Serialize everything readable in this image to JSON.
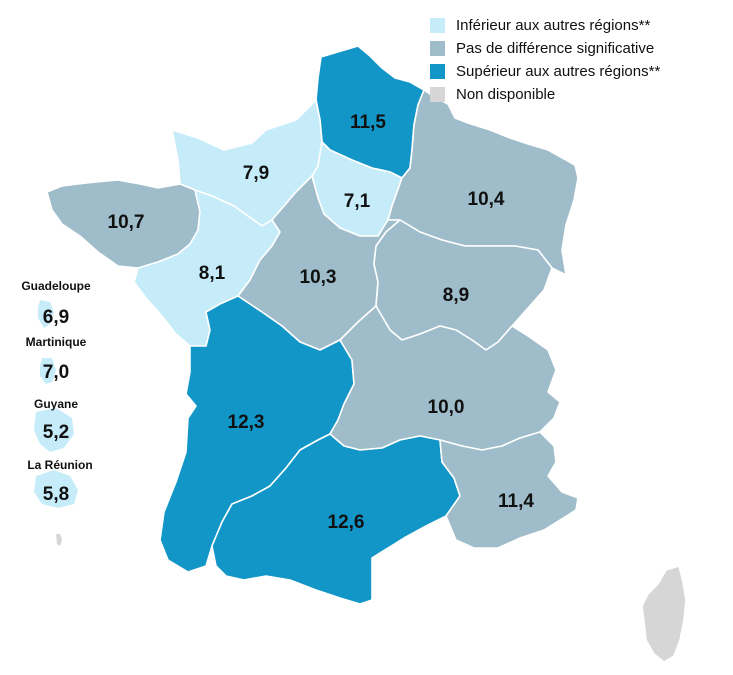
{
  "colors": {
    "inferior": "#c6ecf9",
    "no_diff": "#9ebcc9",
    "superior": "#1196c7",
    "unavailable": "#d6d6d6",
    "border": "#ffffff"
  },
  "legend": {
    "items": [
      {
        "key": "inferior",
        "label": "Inférieur aux autres régions**",
        "color": "#c6ecf9"
      },
      {
        "key": "no_diff",
        "label": "Pas de différence significative",
        "color": "#9ebcc9"
      },
      {
        "key": "superior",
        "label": "Supérieur aux autres régions**",
        "color": "#1196c7"
      },
      {
        "key": "unavailable",
        "label": "Non disponible",
        "color": "#d6d6d6"
      }
    ]
  },
  "regions": [
    {
      "id": "hauts-de-france",
      "value": "11,5",
      "category": "superior"
    },
    {
      "id": "normandie",
      "value": "7,9",
      "category": "inferior"
    },
    {
      "id": "ile-de-france",
      "value": "7,1",
      "category": "inferior"
    },
    {
      "id": "grand-est",
      "value": "10,4",
      "category": "no_diff"
    },
    {
      "id": "bretagne",
      "value": "10,7",
      "category": "no_diff"
    },
    {
      "id": "pays-de-la-loire",
      "value": "8,1",
      "category": "inferior"
    },
    {
      "id": "centre-val-de-loire",
      "value": "10,3",
      "category": "no_diff"
    },
    {
      "id": "bourgogne-franche-comte",
      "value": "8,9",
      "category": "no_diff"
    },
    {
      "id": "nouvelle-aquitaine",
      "value": "12,3",
      "category": "superior"
    },
    {
      "id": "auvergne-rhone-alpes",
      "value": "10,0",
      "category": "no_diff"
    },
    {
      "id": "occitanie",
      "value": "12,6",
      "category": "superior"
    },
    {
      "id": "paca",
      "value": "11,4",
      "category": "no_diff"
    },
    {
      "id": "corse",
      "value": "",
      "category": "unavailable"
    }
  ],
  "overseas": [
    {
      "id": "guadeloupe",
      "name": "Guadeloupe",
      "value": "6,9",
      "category": "inferior"
    },
    {
      "id": "martinique",
      "name": "Martinique",
      "value": "7,0",
      "category": "inferior"
    },
    {
      "id": "guyane",
      "name": "Guyane",
      "value": "5,2",
      "category": "inferior"
    },
    {
      "id": "la-reunion",
      "name": "La Réunion",
      "value": "5,8",
      "category": "inferior"
    }
  ]
}
